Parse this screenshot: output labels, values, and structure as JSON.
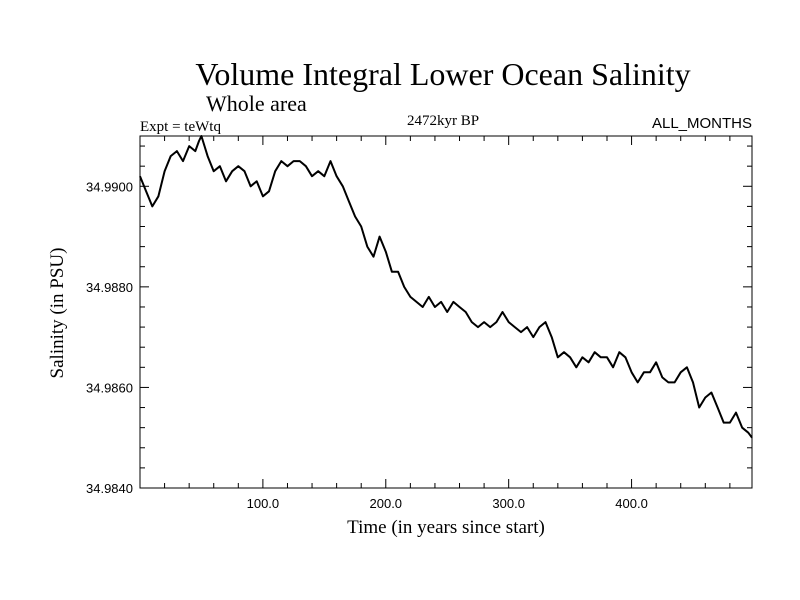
{
  "chart_data": {
    "type": "line",
    "title": "Volume Integral Lower Ocean Salinity",
    "subtitle": "Whole area",
    "left_label": "Expt = teWtq",
    "center_label": "2472kyr BP",
    "right_label": "ALL_MONTHS",
    "xlabel": "Time (in years since start)",
    "ylabel": "Salinity (in PSU)",
    "xlim": [
      0,
      498
    ],
    "ylim": [
      34.984,
      34.991
    ],
    "x_ticks": [
      {
        "value": 100,
        "label": "100.0"
      },
      {
        "value": 200,
        "label": "200.0"
      },
      {
        "value": 300,
        "label": "300.0"
      },
      {
        "value": 400,
        "label": "400.0"
      }
    ],
    "y_ticks": [
      {
        "value": 34.984,
        "label": "34.9840"
      },
      {
        "value": 34.986,
        "label": "34.9860"
      },
      {
        "value": 34.988,
        "label": "34.9880"
      },
      {
        "value": 34.99,
        "label": "34.9900"
      }
    ],
    "series": [
      {
        "name": "Salinity",
        "x": [
          0,
          5,
          10,
          15,
          20,
          25,
          30,
          35,
          40,
          45,
          48,
          50,
          55,
          60,
          65,
          70,
          75,
          80,
          85,
          90,
          95,
          100,
          105,
          110,
          115,
          120,
          125,
          130,
          135,
          140,
          145,
          150,
          155,
          160,
          165,
          170,
          175,
          180,
          185,
          190,
          195,
          200,
          205,
          210,
          215,
          220,
          225,
          230,
          235,
          240,
          245,
          250,
          255,
          260,
          265,
          270,
          275,
          280,
          285,
          290,
          295,
          300,
          305,
          310,
          315,
          320,
          325,
          330,
          335,
          340,
          345,
          350,
          355,
          360,
          365,
          370,
          375,
          380,
          385,
          390,
          395,
          400,
          405,
          410,
          415,
          420,
          425,
          430,
          435,
          440,
          445,
          450,
          455,
          460,
          465,
          470,
          475,
          480,
          485,
          490,
          495,
          498
        ],
        "values": [
          34.9902,
          34.9899,
          34.9896,
          34.9898,
          34.9903,
          34.9906,
          34.9907,
          34.9905,
          34.9908,
          34.9907,
          34.9909,
          34.991,
          34.9906,
          34.9903,
          34.9904,
          34.9901,
          34.9903,
          34.9904,
          34.9903,
          34.99,
          34.9901,
          34.9898,
          34.9899,
          34.9903,
          34.9905,
          34.9904,
          34.9905,
          34.9905,
          34.9904,
          34.9902,
          34.9903,
          34.9902,
          34.9905,
          34.9902,
          34.99,
          34.9897,
          34.9894,
          34.9892,
          34.9888,
          34.9886,
          34.989,
          34.9887,
          34.9883,
          34.9883,
          34.988,
          34.9878,
          34.9877,
          34.9876,
          34.9878,
          34.9876,
          34.9877,
          34.9875,
          34.9877,
          34.9876,
          34.9875,
          34.9873,
          34.9872,
          34.9873,
          34.9872,
          34.9873,
          34.9875,
          34.9873,
          34.9872,
          34.9871,
          34.9872,
          34.987,
          34.9872,
          34.9873,
          34.987,
          34.9866,
          34.9867,
          34.9866,
          34.9864,
          34.9866,
          34.9865,
          34.9867,
          34.9866,
          34.9866,
          34.9864,
          34.9867,
          34.9866,
          34.9863,
          34.9861,
          34.9863,
          34.9863,
          34.9865,
          34.9862,
          34.9861,
          34.9861,
          34.9863,
          34.9864,
          34.9861,
          34.9856,
          34.9858,
          34.9859,
          34.9856,
          34.9853,
          34.9853,
          34.9855,
          34.9852,
          34.9851,
          34.985
        ]
      }
    ]
  }
}
